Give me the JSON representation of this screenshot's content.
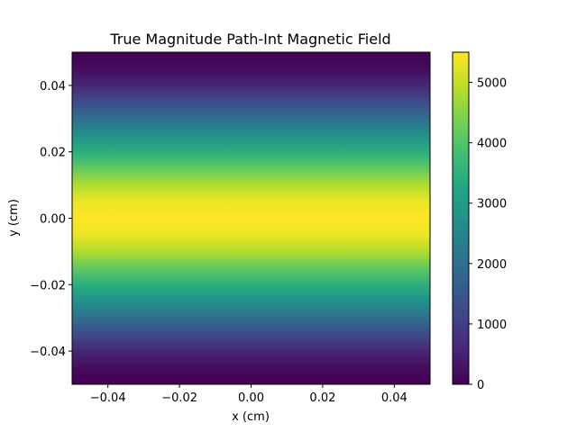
{
  "chart_data": {
    "type": "heatmap",
    "title": "True Magnitude Path-Int Magnetic Field",
    "xlabel": "x (cm)",
    "ylabel": "y (cm)",
    "xlim": [
      -0.05,
      0.05
    ],
    "ylim": [
      -0.05,
      0.05
    ],
    "x_ticks": [
      -0.04,
      -0.02,
      0.0,
      0.02,
      0.04
    ],
    "x_tick_labels": [
      "−0.04",
      "−0.02",
      "0.00",
      "0.02",
      "0.04"
    ],
    "y_ticks": [
      -0.04,
      -0.02,
      0.0,
      0.02,
      0.04
    ],
    "y_tick_labels": [
      "−0.04",
      "−0.02",
      "0.00",
      "0.02",
      "0.04"
    ],
    "colormap": "viridis",
    "colorbar": {
      "range": [
        0,
        5500
      ],
      "ticks": [
        0,
        1000,
        2000,
        3000,
        4000,
        5000
      ],
      "tick_labels": [
        "0",
        "1000",
        "2000",
        "3000",
        "4000",
        "5000"
      ]
    },
    "field_profile": {
      "description_of_variation": "uniform along x, varies with y",
      "y": [
        -0.05,
        -0.045,
        -0.04,
        -0.035,
        -0.03,
        -0.025,
        -0.02,
        -0.015,
        -0.01,
        -0.005,
        0.0,
        0.005,
        0.01,
        0.015,
        0.02,
        0.025,
        0.03,
        0.035,
        0.04,
        0.045,
        0.05
      ],
      "magnitude": [
        0,
        150,
        600,
        1250,
        2000,
        2750,
        3450,
        4150,
        4850,
        5350,
        5500,
        5350,
        4850,
        4150,
        3450,
        2750,
        2000,
        1250,
        600,
        150,
        0
      ]
    },
    "grid": false
  }
}
